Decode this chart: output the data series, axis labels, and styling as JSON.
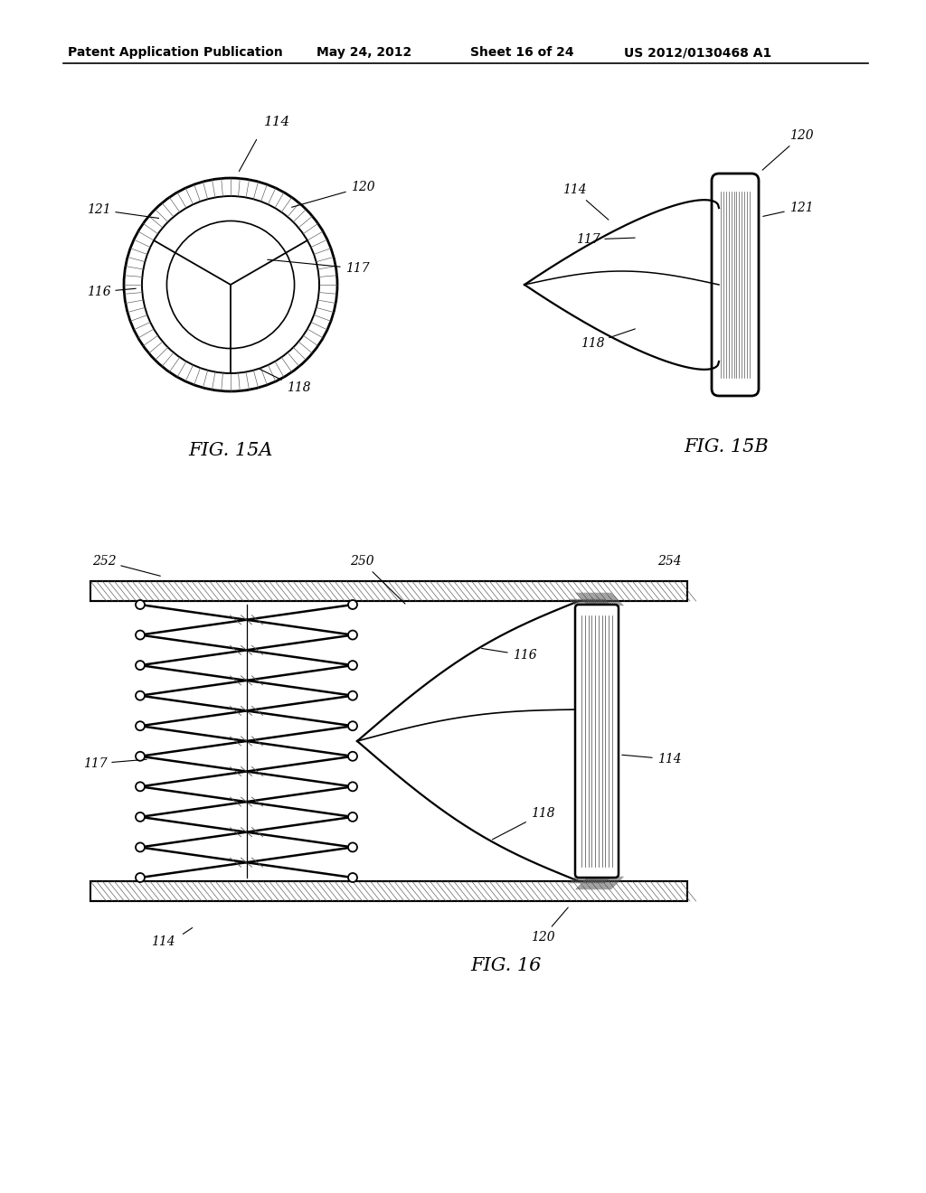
{
  "background_color": "#ffffff",
  "header_text": "Patent Application Publication",
  "header_date": "May 24, 2012",
  "header_sheet": "Sheet 16 of 24",
  "header_patent": "US 2012/0130468 A1",
  "fig15a_label": "FIG. 15A",
  "fig15b_label": "FIG. 15B",
  "fig16_label": "FIG. 16",
  "line_color": "#000000",
  "gray_color": "#888888",
  "light_gray": "#cccccc"
}
